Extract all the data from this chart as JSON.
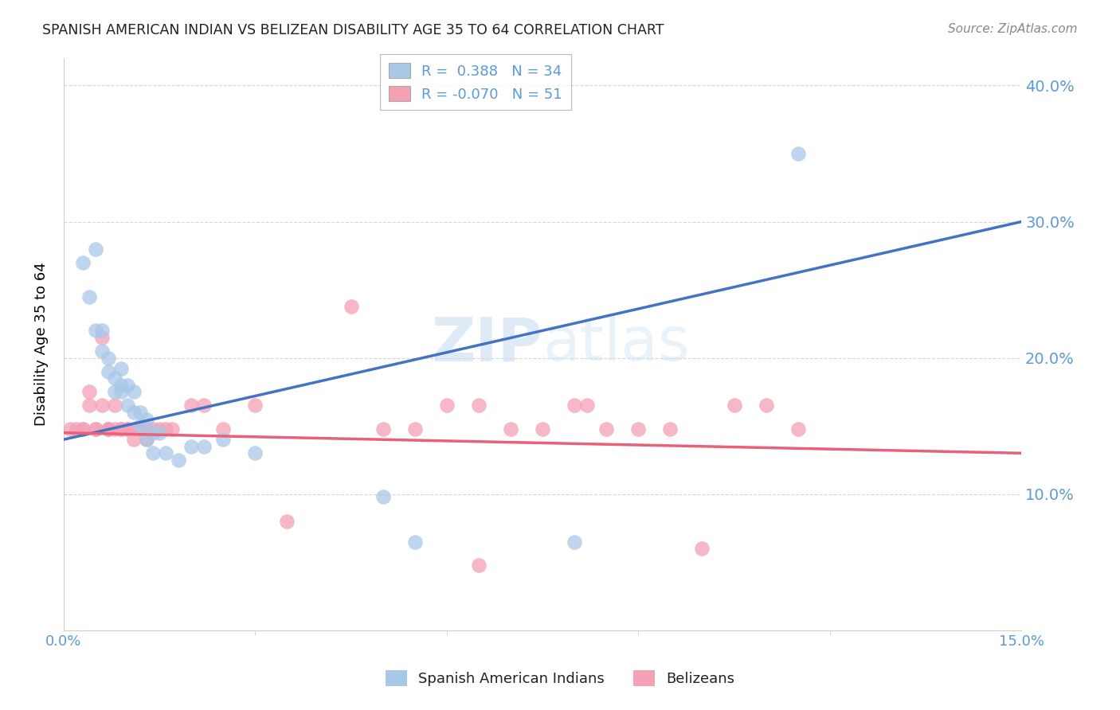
{
  "title": "SPANISH AMERICAN INDIAN VS BELIZEAN DISABILITY AGE 35 TO 64 CORRELATION CHART",
  "source": "Source: ZipAtlas.com",
  "ylabel": "Disability Age 35 to 64",
  "xlim": [
    0.0,
    0.15
  ],
  "ylim": [
    0.0,
    0.42
  ],
  "yticks": [
    0.1,
    0.2,
    0.3,
    0.4
  ],
  "ytick_labels": [
    "10.0%",
    "20.0%",
    "30.0%",
    "40.0%"
  ],
  "xtick_shown": [
    0.0,
    0.15
  ],
  "xtick_labels_shown": [
    "0.0%",
    "15.0%"
  ],
  "blue_r": 0.388,
  "blue_n": 34,
  "pink_r": -0.07,
  "pink_n": 51,
  "blue_color": "#A8C8E8",
  "pink_color": "#F4A0B5",
  "blue_line_color": "#4472C4",
  "pink_line_color": "#E8607A",
  "tick_color": "#5B9BD5",
  "watermark_color": "#C8DCF0",
  "legend_label_blue": "Spanish American Indians",
  "legend_label_pink": "Belizeans",
  "background_color": "#ffffff",
  "grid_color": "#CCCCCC",
  "blue_points_x": [
    0.003,
    0.004,
    0.005,
    0.005,
    0.006,
    0.006,
    0.007,
    0.007,
    0.008,
    0.008,
    0.009,
    0.009,
    0.009,
    0.01,
    0.01,
    0.011,
    0.011,
    0.012,
    0.012,
    0.013,
    0.013,
    0.014,
    0.014,
    0.015,
    0.016,
    0.018,
    0.02,
    0.022,
    0.025,
    0.03,
    0.05,
    0.055,
    0.08,
    0.115
  ],
  "blue_points_y": [
    0.27,
    0.245,
    0.28,
    0.22,
    0.22,
    0.205,
    0.2,
    0.19,
    0.185,
    0.175,
    0.18,
    0.192,
    0.175,
    0.18,
    0.165,
    0.175,
    0.16,
    0.16,
    0.15,
    0.155,
    0.14,
    0.145,
    0.13,
    0.145,
    0.13,
    0.125,
    0.135,
    0.135,
    0.14,
    0.13,
    0.098,
    0.065,
    0.065,
    0.35
  ],
  "pink_points_x": [
    0.001,
    0.002,
    0.003,
    0.003,
    0.004,
    0.004,
    0.005,
    0.005,
    0.006,
    0.006,
    0.007,
    0.007,
    0.007,
    0.008,
    0.008,
    0.009,
    0.009,
    0.01,
    0.01,
    0.011,
    0.011,
    0.012,
    0.012,
    0.013,
    0.013,
    0.014,
    0.015,
    0.016,
    0.017,
    0.02,
    0.022,
    0.025,
    0.03,
    0.035,
    0.045,
    0.05,
    0.055,
    0.06,
    0.065,
    0.07,
    0.075,
    0.08,
    0.085,
    0.09,
    0.095,
    0.1,
    0.105,
    0.11,
    0.115,
    0.082,
    0.065
  ],
  "pink_points_y": [
    0.148,
    0.148,
    0.148,
    0.148,
    0.165,
    0.175,
    0.148,
    0.148,
    0.215,
    0.165,
    0.148,
    0.148,
    0.148,
    0.148,
    0.165,
    0.148,
    0.148,
    0.148,
    0.148,
    0.148,
    0.14,
    0.148,
    0.148,
    0.148,
    0.14,
    0.148,
    0.148,
    0.148,
    0.148,
    0.165,
    0.165,
    0.148,
    0.165,
    0.08,
    0.238,
    0.148,
    0.148,
    0.165,
    0.165,
    0.148,
    0.148,
    0.165,
    0.148,
    0.148,
    0.148,
    0.06,
    0.165,
    0.165,
    0.148,
    0.165,
    0.048
  ]
}
